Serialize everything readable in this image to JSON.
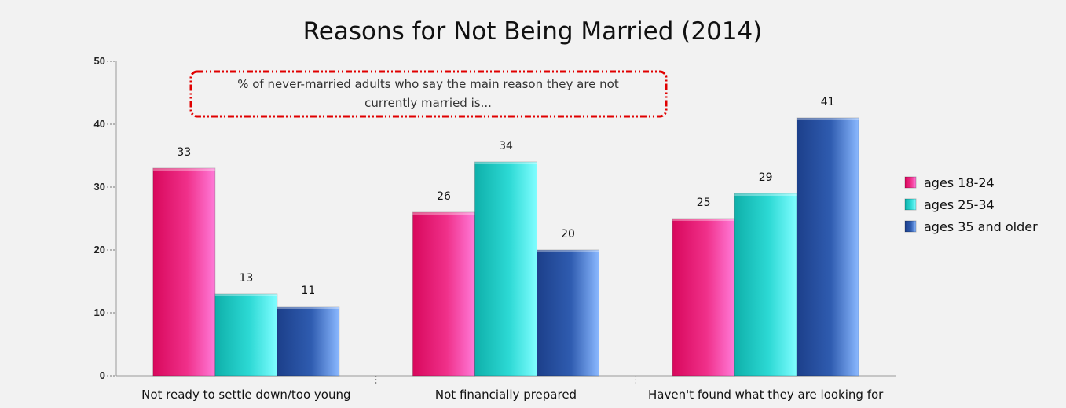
{
  "chart_data": {
    "type": "bar",
    "title": "Reasons for Not Being Married (2014)",
    "annotation": [
      "% of never-married adults who say the main reason they are not",
      "currently married is..."
    ],
    "categories": [
      "Not ready to settle down/too young",
      "Not financially prepared",
      "Haven't found what they are looking for"
    ],
    "series": [
      {
        "name": "ages 18-24",
        "values": [
          33,
          26,
          25
        ],
        "color": "#e8196e"
      },
      {
        "name": "ages 25-34",
        "values": [
          13,
          34,
          29
        ],
        "color": "#1fc9c3"
      },
      {
        "name": "ages 35 and older",
        "values": [
          11,
          20,
          41
        ],
        "color": "#2a4f9e"
      }
    ],
    "ylim": [
      0,
      50
    ],
    "yticks": [
      0,
      10,
      20,
      30,
      40,
      50
    ],
    "xlabel": "",
    "ylabel": "",
    "legend_position": "right",
    "grid": false
  }
}
